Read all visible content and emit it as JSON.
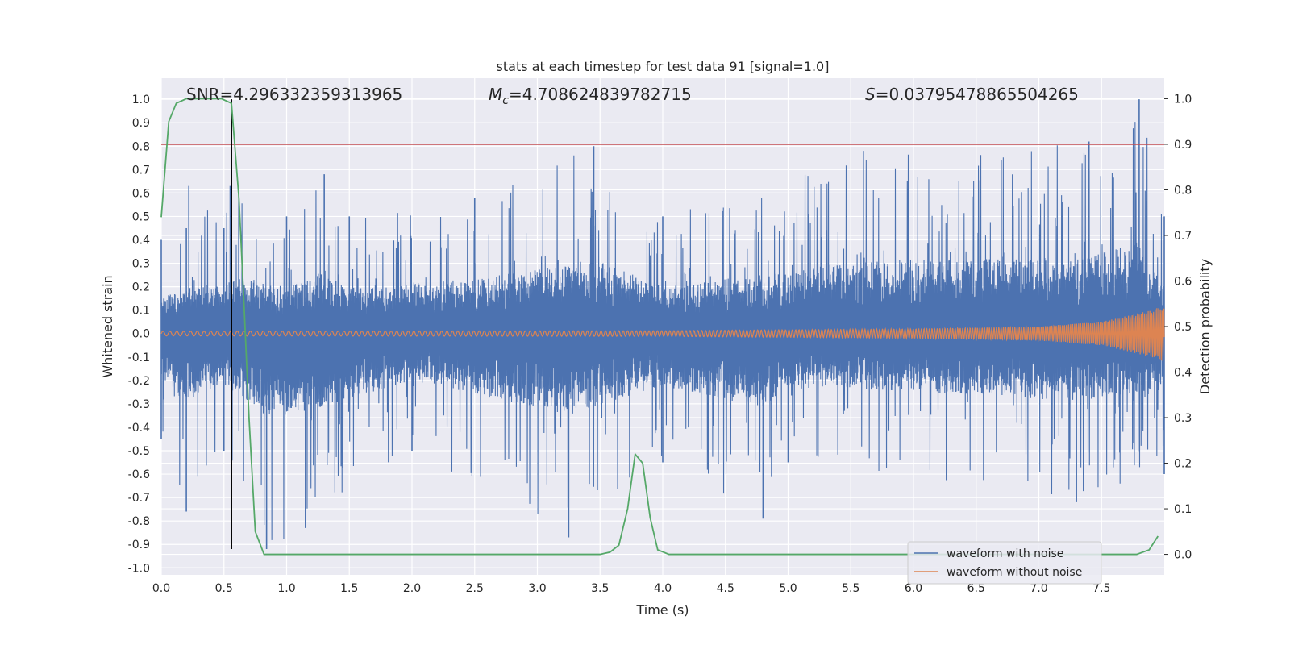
{
  "chart_data": {
    "type": "line",
    "title": "stats at each timestep for test data 91 [signal=1.0]",
    "xlabel": "Time (s)",
    "ylabel": "Whitened strain",
    "y2label": "Detection probability",
    "xlim": [
      0.0,
      8.0
    ],
    "ylim": [
      -1.03,
      1.09
    ],
    "y2lim": [
      -0.045,
      1.045
    ],
    "x_ticks": [
      "0.0",
      "0.5",
      "1.0",
      "1.5",
      "2.0",
      "2.5",
      "3.0",
      "3.5",
      "4.0",
      "4.5",
      "5.0",
      "5.5",
      "6.0",
      "6.5",
      "7.0",
      "7.5"
    ],
    "y_ticks": [
      "1.0",
      "0.9",
      "0.8",
      "0.7",
      "0.6",
      "0.5",
      "0.4",
      "0.3",
      "0.2",
      "0.1",
      "0.0",
      "-0.1",
      "-0.2",
      "-0.3",
      "-0.4",
      "-0.5",
      "-0.6",
      "-0.7",
      "-0.8",
      "-0.9",
      "-1.0"
    ],
    "y2_ticks": [
      "1.0",
      "0.9",
      "0.8",
      "0.7",
      "0.6",
      "0.5",
      "0.4",
      "0.3",
      "0.2",
      "0.1",
      "0.0"
    ],
    "annotations": {
      "snr": "SNR=4.296332359313965",
      "mc_symbol": "M",
      "mc_sub": "c",
      "mc_value": "=4.708624839782715",
      "s_symbol": "S",
      "s_value": "=0.03795478865504265"
    },
    "threshold": {
      "y2": 0.9,
      "color": "#c44e52"
    },
    "vertical_marker": {
      "x": 0.56,
      "y_from": -0.92,
      "y_to": 1.0,
      "color": "#000000"
    },
    "series": [
      {
        "name": "waveform with noise",
        "color": "#4c72b0",
        "style": "noise",
        "envelope_positive": [
          [
            0.0,
            0.4
          ],
          [
            0.2,
            0.45
          ],
          [
            0.22,
            0.63
          ],
          [
            0.5,
            0.45
          ],
          [
            0.55,
            0.63
          ],
          [
            1.0,
            0.5
          ],
          [
            1.3,
            0.68
          ],
          [
            1.5,
            0.5
          ],
          [
            2.5,
            0.58
          ],
          [
            3.45,
            0.8
          ],
          [
            4.0,
            0.5
          ],
          [
            5.6,
            0.78
          ],
          [
            7.4,
            0.82
          ],
          [
            7.8,
            1.0
          ],
          [
            8.0,
            0.5
          ]
        ],
        "envelope_negative": [
          [
            0.0,
            -0.45
          ],
          [
            0.2,
            -0.76
          ],
          [
            0.5,
            -0.5
          ],
          [
            0.84,
            -0.92
          ],
          [
            1.15,
            -0.83
          ],
          [
            2.0,
            -0.5
          ],
          [
            3.25,
            -0.87
          ],
          [
            4.0,
            -0.55
          ],
          [
            4.8,
            -0.79
          ],
          [
            5.0,
            -0.55
          ],
          [
            7.3,
            -0.72
          ],
          [
            8.0,
            -0.6
          ]
        ]
      },
      {
        "name": "waveform without noise",
        "color": "#dd8452",
        "style": "chirp",
        "amplitude": [
          [
            0.0,
            0.01
          ],
          [
            4.0,
            0.012
          ],
          [
            6.0,
            0.02
          ],
          [
            7.0,
            0.03
          ],
          [
            7.5,
            0.05
          ],
          [
            7.9,
            0.1
          ],
          [
            8.0,
            0.12
          ]
        ]
      },
      {
        "name": "",
        "color": "#55a868",
        "axis": "y2",
        "x": [
          0.0,
          0.06,
          0.12,
          0.2,
          0.3,
          0.4,
          0.48,
          0.56,
          0.62,
          0.66,
          0.7,
          0.75,
          0.82,
          0.9,
          1.2,
          2.0,
          3.0,
          3.5,
          3.58,
          3.65,
          3.72,
          3.78,
          3.84,
          3.9,
          3.96,
          4.05,
          4.2,
          5.0,
          6.0,
          7.0,
          7.5,
          7.78,
          7.88,
          7.95
        ],
        "y": [
          0.74,
          0.95,
          0.99,
          1.0,
          1.0,
          1.0,
          1.0,
          0.99,
          0.78,
          0.55,
          0.3,
          0.05,
          0.0,
          0.0,
          0.0,
          0.0,
          0.0,
          0.0,
          0.005,
          0.02,
          0.1,
          0.22,
          0.2,
          0.08,
          0.01,
          0.0,
          0.0,
          0.0,
          0.0,
          0.0,
          0.0,
          0.0,
          0.01,
          0.04
        ]
      }
    ],
    "legend": {
      "placement": "lower-right",
      "entries": [
        {
          "label": "waveform with noise",
          "color": "#4c72b0"
        },
        {
          "label": "waveform without noise",
          "color": "#dd8452"
        }
      ]
    },
    "grid": true,
    "background": "#eaeaf2"
  }
}
